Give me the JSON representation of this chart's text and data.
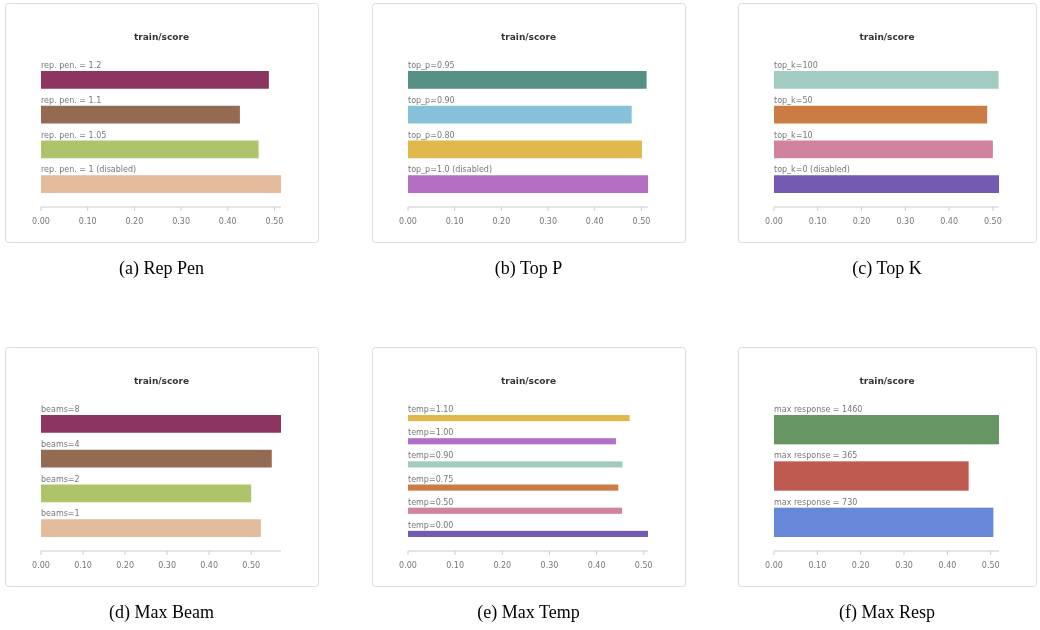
{
  "chart_data": [
    {
      "type": "bar",
      "orientation": "horizontal",
      "title": "train/score",
      "categories": [
        "rep. pen. = 1.2",
        "rep. pen. = 1.1",
        "rep. pen. = 1.05",
        "rep. pen. = 1 (disabled)"
      ],
      "values": [
        0.488,
        0.426,
        0.466,
        0.514
      ],
      "colors": [
        "#8b3560",
        "#956a53",
        "#adc46a",
        "#e4bc9c"
      ],
      "xlim": [
        0,
        0.514
      ],
      "xticks": [
        {
          "value": 0,
          "label": "0.00"
        },
        {
          "value": 0.1,
          "label": "0.10"
        },
        {
          "value": 0.2,
          "label": "0.20"
        },
        {
          "value": 0.3,
          "label": "0.30"
        },
        {
          "value": 0.4,
          "label": "0.40"
        },
        {
          "value": 0.5,
          "label": "0.50"
        }
      ],
      "annotations": [
        "(a) Rep Pen"
      ]
    },
    {
      "type": "bar",
      "orientation": "horizontal",
      "title": "train/score",
      "categories": [
        "top_p=0.95",
        "top_p=0.90",
        "top_p=0.80",
        "top_p=1.0 (disabled)"
      ],
      "values": [
        0.511,
        0.479,
        0.501,
        0.514
      ],
      "colors": [
        "#568f84",
        "#86c0d9",
        "#e0b84c",
        "#b26fc4"
      ],
      "xlim": [
        0,
        0.514
      ],
      "xticks": [
        {
          "value": 0,
          "label": "0.00"
        },
        {
          "value": 0.1,
          "label": "0.10"
        },
        {
          "value": 0.2,
          "label": "0.20"
        },
        {
          "value": 0.3,
          "label": "0.30"
        },
        {
          "value": 0.4,
          "label": "0.40"
        },
        {
          "value": 0.5,
          "label": "0.50"
        }
      ],
      "annotations": [
        "(b) Top P"
      ]
    },
    {
      "type": "bar",
      "orientation": "horizontal",
      "title": "train/score",
      "categories": [
        "top_k=100",
        "top_k=50",
        "top_k=10",
        "top_k=0 (disabled)"
      ],
      "values": [
        0.513,
        0.487,
        0.5,
        0.514
      ],
      "colors": [
        "#a2cbc1",
        "#cb7c45",
        "#d1829e",
        "#745ab0"
      ],
      "xlim": [
        0,
        0.514
      ],
      "xticks": [
        {
          "value": 0,
          "label": "0.00"
        },
        {
          "value": 0.1,
          "label": "0.10"
        },
        {
          "value": 0.2,
          "label": "0.20"
        },
        {
          "value": 0.3,
          "label": "0.30"
        },
        {
          "value": 0.4,
          "label": "0.40"
        },
        {
          "value": 0.5,
          "label": "0.50"
        }
      ],
      "annotations": [
        "(c) Top K"
      ]
    },
    {
      "type": "bar",
      "orientation": "horizontal",
      "title": "train/score",
      "categories": [
        "beams=8",
        "beams=4",
        "beams=2",
        "beams=1"
      ],
      "values": [
        0.571,
        0.549,
        0.5,
        0.523
      ],
      "colors": [
        "#8b3560",
        "#956a53",
        "#adc46a",
        "#e4bc9c"
      ],
      "xlim": [
        0,
        0.571
      ],
      "xticks": [
        {
          "value": 0,
          "label": "0.00"
        },
        {
          "value": 0.1,
          "label": "0.10"
        },
        {
          "value": 0.2,
          "label": "0.20"
        },
        {
          "value": 0.3,
          "label": "0.30"
        },
        {
          "value": 0.4,
          "label": "0.40"
        },
        {
          "value": 0.5,
          "label": "0.50"
        }
      ],
      "annotations": [
        "(d) Max Beam"
      ]
    },
    {
      "type": "bar",
      "orientation": "horizontal",
      "title": "train/score",
      "categories": [
        "temp=1.10",
        "temp=1.00",
        "temp=0.90",
        "temp=0.75",
        "temp=0.50",
        "temp=0.00"
      ],
      "values": [
        0.47,
        0.441,
        0.455,
        0.446,
        0.454,
        0.509
      ],
      "colors": [
        "#e0b84c",
        "#b26fc4",
        "#a2cbc1",
        "#cb7c45",
        "#d1829e",
        "#745ab0"
      ],
      "xlim": [
        0,
        0.509
      ],
      "xticks": [
        {
          "value": 0,
          "label": "0.00"
        },
        {
          "value": 0.1,
          "label": "0.10"
        },
        {
          "value": 0.2,
          "label": "0.20"
        },
        {
          "value": 0.3,
          "label": "0.30"
        },
        {
          "value": 0.4,
          "label": "0.40"
        },
        {
          "value": 0.5,
          "label": "0.50"
        }
      ],
      "annotations": [
        "(e) Max Temp"
      ]
    },
    {
      "type": "bar",
      "orientation": "horizontal",
      "title": "train/score",
      "categories": [
        "max response = 1460",
        "max response = 365",
        "max response = 730"
      ],
      "values": [
        0.519,
        0.449,
        0.506
      ],
      "colors": [
        "#679662",
        "#bf5a50",
        "#6788d8"
      ],
      "xlim": [
        0,
        0.519
      ],
      "xticks": [
        {
          "value": 0,
          "label": "0.00"
        },
        {
          "value": 0.1,
          "label": "0.10"
        },
        {
          "value": 0.2,
          "label": "0.20"
        },
        {
          "value": 0.3,
          "label": "0.30"
        },
        {
          "value": 0.4,
          "label": "0.40"
        },
        {
          "value": 0.5,
          "label": "0.50"
        }
      ],
      "annotations": [
        "(f) Max Resp"
      ]
    }
  ]
}
